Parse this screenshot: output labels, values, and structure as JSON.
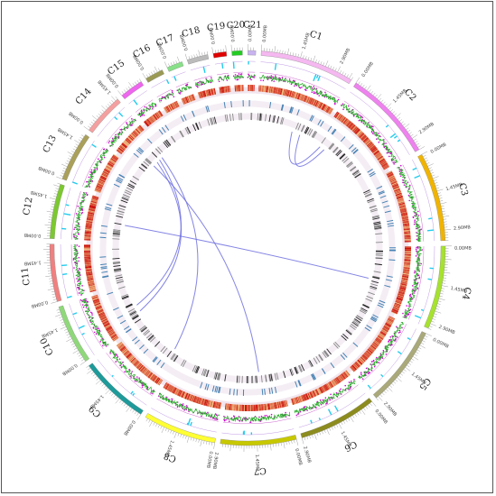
{
  "diagram": {
    "type": "circos",
    "chromosomes": [
      {
        "name": "C1",
        "size": 3.6,
        "color": "#f5b8f0"
      },
      {
        "name": "C2",
        "size": 3.5,
        "color": "#ee82ee"
      },
      {
        "name": "C3",
        "size": 3.4,
        "color": "#f0b400"
      },
      {
        "name": "C4",
        "size": 3.2,
        "color": "#a6e22e"
      },
      {
        "name": "C5",
        "size": 3.1,
        "color": "#a9a97a"
      },
      {
        "name": "C6",
        "size": 3.0,
        "color": "#8c8c1e"
      },
      {
        "name": "C7",
        "size": 2.9,
        "color": "#c8c800"
      },
      {
        "name": "C8",
        "size": 2.8,
        "color": "#ffff33"
      },
      {
        "name": "C9",
        "size": 2.7,
        "color": "#1e9a9a"
      },
      {
        "name": "C10",
        "size": 2.3,
        "color": "#8fd87a"
      },
      {
        "name": "C11",
        "size": 2.2,
        "color": "#f08080"
      },
      {
        "name": "C12",
        "size": 2.1,
        "color": "#7cc830"
      },
      {
        "name": "C13",
        "size": 1.9,
        "color": "#aaa05a"
      },
      {
        "name": "C14",
        "size": 1.6,
        "color": "#f4a0a0"
      },
      {
        "name": "C15",
        "size": 0.9,
        "color": "#ee66ee"
      },
      {
        "name": "C16",
        "size": 0.7,
        "color": "#9a9a55"
      },
      {
        "name": "C17",
        "size": 0.6,
        "color": "#88e088"
      },
      {
        "name": "C18",
        "size": 0.8,
        "color": "#bbbbbb"
      },
      {
        "name": "C19",
        "size": 0.5,
        "color": "#e00000"
      },
      {
        "name": "C20",
        "size": 0.4,
        "color": "#22cc22"
      },
      {
        "name": "C21",
        "size": 0.3,
        "color": "#c8b4f0"
      }
    ],
    "tick_labels": [
      "0.00MB",
      "1.45MB",
      "2.90MB"
    ],
    "colors": {
      "frame": "#555555",
      "heatmap_low": "#f5d28c",
      "heatmap_high": "#c80000",
      "gc_line": "#22aa22",
      "gc_points": "#cc00cc",
      "skew_points": "#22ccee",
      "blue_bars": "#4682b4",
      "gray_bars": "#555555",
      "links": "#7070e0"
    },
    "links": [
      {
        "from": "C2",
        "from_mb": 0.3,
        "to": "C1",
        "to_mb": 2.2
      },
      {
        "from": "C2",
        "from_mb": 0.6,
        "to": "C1",
        "to_mb": 2.7
      },
      {
        "from": "C14",
        "from_mb": 0.6,
        "to": "C7",
        "to_mb": 1.2
      },
      {
        "from": "C14",
        "from_mb": 0.9,
        "to": "C10",
        "to_mb": 0.6
      },
      {
        "from": "C14",
        "from_mb": 1.1,
        "to": "C10",
        "to_mb": 1.0
      },
      {
        "from": "C14",
        "from_mb": 1.3,
        "to": "C9",
        "to_mb": 0.4
      },
      {
        "from": "C12",
        "from_mb": 1.0,
        "to": "C4",
        "to_mb": 1.9
      }
    ]
  }
}
